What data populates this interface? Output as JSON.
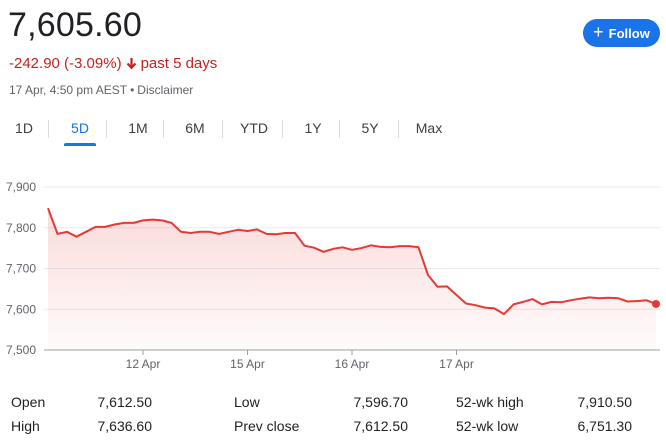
{
  "quote": {
    "price": "7,605.60",
    "change": "-242.90 (-3.09%)",
    "period": "past 5 days",
    "timestamp": "17 Apr, 4:50 pm AEST",
    "disclaimer": "Disclaimer",
    "follow_label": "Follow"
  },
  "tabs": [
    {
      "label": "1D",
      "active": false
    },
    {
      "label": "5D",
      "active": true
    },
    {
      "label": "1M",
      "active": false
    },
    {
      "label": "6M",
      "active": false
    },
    {
      "label": "YTD",
      "active": false
    },
    {
      "label": "1Y",
      "active": false
    },
    {
      "label": "5Y",
      "active": false
    },
    {
      "label": "Max",
      "active": false
    }
  ],
  "colors": {
    "line": "#e53935",
    "accent": "#1a73e8",
    "negative": "#c5221f"
  },
  "chart_data": {
    "type": "area",
    "y_ticks": [
      "7,900",
      "7,800",
      "7,700",
      "7,600",
      "7,500"
    ],
    "y_tick_values": [
      7900,
      7800,
      7700,
      7600,
      7500
    ],
    "ylim": [
      7500,
      7900
    ],
    "x_ticks": [
      "12 Apr",
      "15 Apr",
      "16 Apr",
      "17 Apr"
    ],
    "x_tick_positions": [
      10,
      21,
      32,
      43
    ],
    "grid": true,
    "values": [
      7848,
      7785,
      7790,
      7778,
      7790,
      7802,
      7802,
      7808,
      7812,
      7812,
      7818,
      7820,
      7818,
      7812,
      7790,
      7787,
      7790,
      7790,
      7785,
      7790,
      7795,
      7792,
      7796,
      7785,
      7784,
      7787,
      7787,
      7756,
      7751,
      7741,
      7748,
      7752,
      7746,
      7750,
      7757,
      7753,
      7752,
      7755,
      7755,
      7752,
      7684,
      7655,
      7656,
      7635,
      7614,
      7610,
      7604,
      7602,
      7588,
      7612,
      7618,
      7625,
      7612,
      7618,
      7617,
      7622,
      7626,
      7629,
      7627,
      7628,
      7627,
      7619,
      7620,
      7622,
      7613
    ]
  },
  "stats": {
    "open_label": "Open",
    "open": "7,612.50",
    "high_label": "High",
    "high": "7,636.60",
    "low_label": "Low",
    "low": "7,596.70",
    "prev_close_label": "Prev close",
    "prev_close": "7,612.50",
    "wk52_high_label": "52-wk high",
    "wk52_high": "7,910.50",
    "wk52_low_label": "52-wk low",
    "wk52_low": "6,751.30"
  }
}
